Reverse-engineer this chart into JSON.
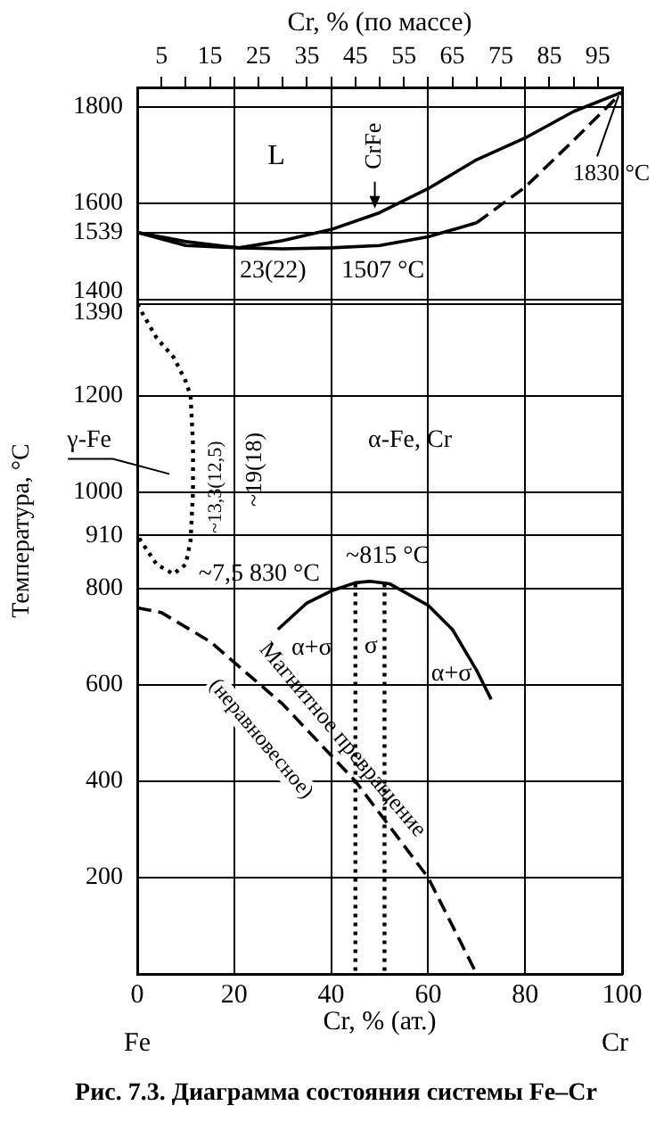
{
  "chart_data": {
    "type": "line",
    "xlabel": "Cr, % (ат.)",
    "x2label": "Cr, % (по массе)",
    "ylabel": "Температура, °C",
    "xlim": [
      0,
      100
    ],
    "xticks": [
      0,
      20,
      40,
      60,
      80,
      100
    ],
    "x2lim": [
      0,
      100
    ],
    "x2ticks": [
      5,
      {
        "value": 10,
        "label": null
      },
      15,
      {
        "value": 20,
        "label": null
      },
      25,
      {
        "value": 30,
        "label": null
      },
      35,
      {
        "value": 40,
        "label": null
      },
      45,
      {
        "value": 50,
        "label": null
      },
      55,
      {
        "value": 60,
        "label": null
      },
      65,
      {
        "value": 70,
        "label": null
      },
      75,
      {
        "value": 80,
        "label": null
      },
      85,
      {
        "value": 90,
        "label": null
      },
      95
    ],
    "ylim": [
      0,
      1840
    ],
    "yticks": [
      {
        "value": 0,
        "label": null
      },
      200,
      400,
      600,
      800,
      910,
      1000,
      1200,
      1390,
      1400,
      1539,
      1600,
      1800
    ],
    "grid": true,
    "legend": false,
    "marker": "none",
    "series": [
      {
        "type": "line",
        "color": "#000000",
        "line_style": "solid",
        "x": [
          0,
          10,
          21,
          30,
          40,
          50,
          60,
          70,
          80,
          90,
          100
        ],
        "values": [
          1539,
          1520,
          1507,
          1522,
          1545,
          1580,
          1630,
          1690,
          1735,
          1790,
          1830
        ]
      },
      {
        "type": "line",
        "color": "#000000",
        "line_style": "solid",
        "x": [
          0,
          10,
          21,
          30,
          40,
          50,
          60,
          70
        ],
        "values": [
          1539,
          1512,
          1507,
          1505,
          1507,
          1512,
          1530,
          1559
        ]
      },
      {
        "type": "line",
        "color": "#000000",
        "line_style": "dashed",
        "x": [
          70,
          80,
          90,
          100
        ],
        "values": [
          1559,
          1633,
          1730,
          1830
        ]
      },
      {
        "type": "line",
        "color": "#000000",
        "line_style": "dotted",
        "x": [
          0,
          4,
          7.5,
          10,
          11,
          11.5,
          11.5,
          11,
          10,
          7.5,
          4,
          0
        ],
        "values": [
          1390,
          1320,
          1280,
          1230,
          1200,
          1100,
          1000,
          900,
          850,
          830,
          850,
          910
        ]
      },
      {
        "type": "line",
        "color": "#000000",
        "line_style": "solid",
        "x": [
          29,
          35,
          40,
          45,
          48,
          52,
          60,
          65,
          70,
          73
        ],
        "values": [
          715,
          770,
          795,
          812,
          815,
          810,
          765,
          715,
          630,
          570
        ]
      },
      {
        "type": "line",
        "color": "#000000",
        "line_style": "dotted",
        "x": [
          45,
          45
        ],
        "values": [
          810,
          0
        ]
      },
      {
        "type": "line",
        "color": "#000000",
        "line_style": "dotted",
        "x": [
          51,
          51
        ],
        "values": [
          810,
          0
        ]
      },
      {
        "type": "line",
        "color": "#000000",
        "line_style": "dashed",
        "x": [
          0,
          5,
          15,
          30,
          45,
          60,
          70
        ],
        "values": [
          760,
          750,
          690,
          560,
          400,
          200,
          0
        ]
      }
    ],
    "annotations": [
      "L",
      {
        "text": "CrFe",
        "x": 49,
        "y": 1585
      },
      {
        "text": "1830 °C",
        "x": 100,
        "y": 1830
      },
      {
        "text": "23(22)",
        "x": 21,
        "y": 1507
      },
      "1507 °C",
      "γ-Fe",
      "~13,3(12,5)",
      "~19(18)",
      "α-Fe, Cr",
      {
        "text": "~7,5 830 °C",
        "x": 7.5,
        "y": 830
      },
      {
        "text": "~815 °C",
        "x": 48,
        "y": 815
      },
      "α+σ",
      "σ",
      "α+σ",
      "Магнитное превращение",
      "(неравновесное)",
      "Fe",
      "Cr",
      "Рис. 7.3. Диаграмма состояния системы Fe–Cr"
    ]
  }
}
